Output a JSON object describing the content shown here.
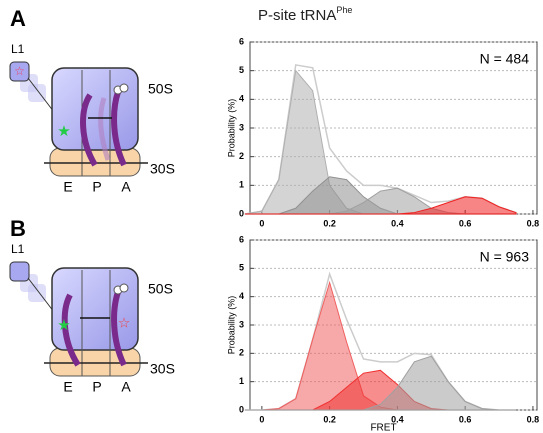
{
  "panels": [
    {
      "label": "A",
      "l1": "L1",
      "subunits": [
        "50S",
        "30S"
      ],
      "sites": [
        "E",
        "P",
        "A"
      ]
    },
    {
      "label": "B",
      "l1": "L1",
      "subunits": [
        "50S",
        "30S"
      ],
      "sites": [
        "E",
        "P",
        "A"
      ]
    }
  ],
  "title": {
    "main": "P-site tRNA",
    "sup": "Phe"
  },
  "chart_data": [
    {
      "type": "area",
      "annotation": "N = 484",
      "y_label": "Probability (%)",
      "x": [
        -0.05,
        0,
        0.05,
        0.1,
        0.15,
        0.2,
        0.25,
        0.3,
        0.35,
        0.4,
        0.45,
        0.5,
        0.55,
        0.6,
        0.65,
        0.7,
        0.75
      ],
      "series": [
        {
          "color": "#ffffff",
          "values": [
            0,
            0.1,
            1.2,
            5.2,
            5.1,
            2.3,
            1.5,
            1.0,
            1.0,
            0.9,
            0.65,
            0.4,
            0.45,
            0.6,
            0.55,
            0.25,
            0.05
          ]
        },
        {
          "color": "#b0b0b0",
          "values": [
            0,
            0.1,
            1.2,
            5.0,
            4.3,
            1.0,
            0.2,
            0,
            0,
            0,
            0,
            0,
            0,
            0,
            0,
            0,
            0
          ]
        },
        {
          "color": "#909090",
          "values": [
            0,
            0,
            0,
            0.2,
            0.8,
            1.3,
            1.2,
            0.6,
            0.2,
            0,
            0,
            0,
            0,
            0,
            0,
            0,
            0
          ]
        },
        {
          "color": "#a0a0a0",
          "values": [
            0,
            0,
            0,
            0,
            0,
            0,
            0.1,
            0.4,
            0.8,
            0.9,
            0.6,
            0.2,
            0.05,
            0,
            0,
            0,
            0
          ]
        },
        {
          "color": "#f02020",
          "values": [
            0,
            0,
            0,
            0,
            0,
            0,
            0,
            0,
            0,
            0,
            0.05,
            0.2,
            0.4,
            0.6,
            0.55,
            0.25,
            0.05
          ]
        }
      ],
      "xlim": [
        -0.035,
        0.812
      ],
      "ylim": [
        0,
        6
      ],
      "xticks": [
        0,
        0.2,
        0.4,
        0.6,
        0.8
      ],
      "yticks": [
        0,
        1,
        2,
        3,
        4,
        5,
        6
      ],
      "grid": true
    },
    {
      "type": "area",
      "annotation": "N = 963",
      "y_label": "Probability (%)",
      "x_label": "FRET",
      "x": [
        -0.05,
        0,
        0.05,
        0.1,
        0.15,
        0.2,
        0.25,
        0.3,
        0.35,
        0.4,
        0.45,
        0.5,
        0.55,
        0.6,
        0.65,
        0.7,
        0.75
      ],
      "series": [
        {
          "color": "#ffffff",
          "values": [
            0,
            0,
            0.05,
            0.4,
            2.5,
            4.8,
            3.2,
            1.8,
            1.7,
            1.7,
            2.0,
            1.95,
            1.0,
            0.3,
            0.05,
            0,
            0
          ]
        },
        {
          "color": "#f06060",
          "values": [
            0,
            0,
            0.05,
            0.4,
            2.5,
            4.5,
            2.4,
            0.5,
            0.1,
            0,
            0,
            0,
            0,
            0,
            0,
            0,
            0
          ]
        },
        {
          "color": "#f03030",
          "values": [
            0,
            0,
            0,
            0,
            0,
            0.3,
            0.8,
            1.3,
            1.4,
            0.9,
            0.3,
            0.05,
            0,
            0,
            0,
            0,
            0
          ]
        },
        {
          "color": "#a0a0a0",
          "values": [
            0,
            0,
            0,
            0,
            0,
            0,
            0,
            0,
            0.2,
            0.8,
            1.7,
            1.9,
            1.0,
            0.3,
            0.05,
            0,
            0
          ]
        }
      ],
      "xlim": [
        -0.035,
        0.812
      ],
      "ylim": [
        0,
        6
      ],
      "xticks": [
        0,
        0.2,
        0.4,
        0.6,
        0.8
      ],
      "yticks": [
        0,
        1,
        2,
        3,
        4,
        5,
        6
      ],
      "grid": true
    }
  ]
}
